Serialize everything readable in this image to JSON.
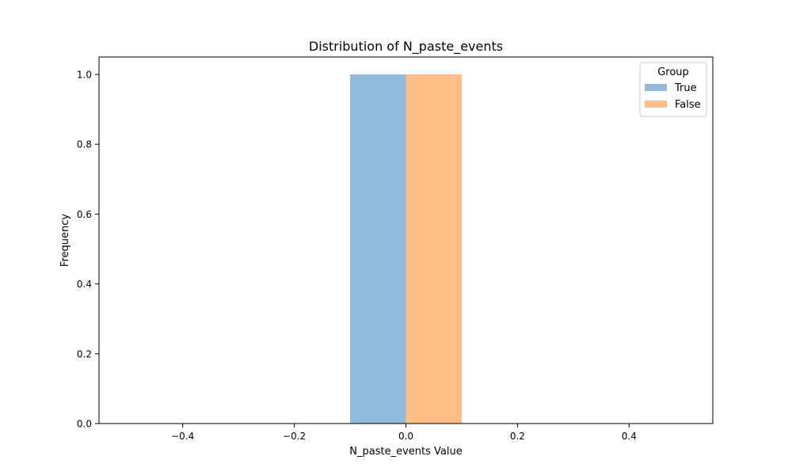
{
  "chart_data": {
    "type": "bar",
    "title": "Distribution of N_paste_events",
    "xlabel": "N_paste_events Value",
    "ylabel": "Frequency",
    "xlim": [
      -0.55,
      0.55
    ],
    "ylim": [
      0,
      1.05
    ],
    "xticks": [
      -0.4,
      -0.2,
      0.0,
      0.2,
      0.4
    ],
    "xtick_labels": [
      "−0.4",
      "−0.2",
      "0.0",
      "0.2",
      "0.4"
    ],
    "yticks": [
      0.0,
      0.2,
      0.4,
      0.6,
      0.8,
      1.0
    ],
    "ytick_labels": [
      "0.0",
      "0.2",
      "0.4",
      "0.6",
      "0.8",
      "1.0"
    ],
    "grid": false,
    "legend": {
      "title": "Group",
      "placement": "top-right"
    },
    "series": [
      {
        "name": "True",
        "color": "#8fbad9",
        "bins": [
          {
            "x0": -0.1,
            "x1": 0.0,
            "value": 1.0
          }
        ]
      },
      {
        "name": "False",
        "color": "#ffbe86",
        "bins": [
          {
            "x0": 0.0,
            "x1": 0.1,
            "value": 1.0
          }
        ]
      }
    ]
  }
}
